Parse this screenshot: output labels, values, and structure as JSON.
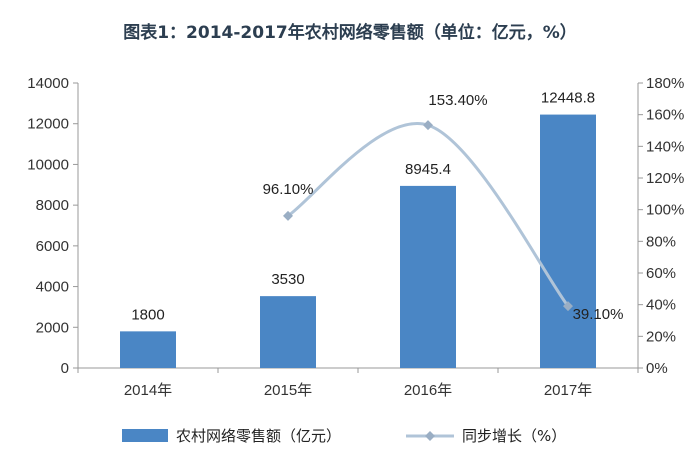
{
  "chart_data": {
    "type": "bar",
    "title": "图表1：2014-2017年农村网络零售额（单位：亿元，%）",
    "categories": [
      "2014年",
      "2015年",
      "2016年",
      "2017年"
    ],
    "series": [
      {
        "name": "农村网络零售额（亿元）",
        "type": "bar",
        "axis": "left",
        "values": [
          1800,
          3530,
          8945.4,
          12448.8
        ],
        "labels": [
          "1800",
          "3530",
          "8945.4",
          "12448.8"
        ]
      },
      {
        "name": "同步增长（%）",
        "type": "line",
        "axis": "right",
        "values": [
          null,
          96.1,
          153.4,
          39.1
        ],
        "labels": [
          "",
          "96.10%",
          "153.40%",
          "39.10%"
        ]
      }
    ],
    "ylim": [
      0,
      14000
    ],
    "y_ticks": [
      "0",
      "2000",
      "4000",
      "6000",
      "8000",
      "10000",
      "12000",
      "14000"
    ],
    "y2lim": [
      0,
      180
    ],
    "y2_ticks": [
      "0%",
      "20%",
      "40%",
      "60%",
      "80%",
      "100%",
      "120%",
      "140%",
      "160%",
      "180%"
    ],
    "colors": {
      "bar": "#4a86c5",
      "line": "#b0c4d8",
      "marker": "#9aaec4"
    },
    "legend_position": "bottom",
    "grid": false
  }
}
